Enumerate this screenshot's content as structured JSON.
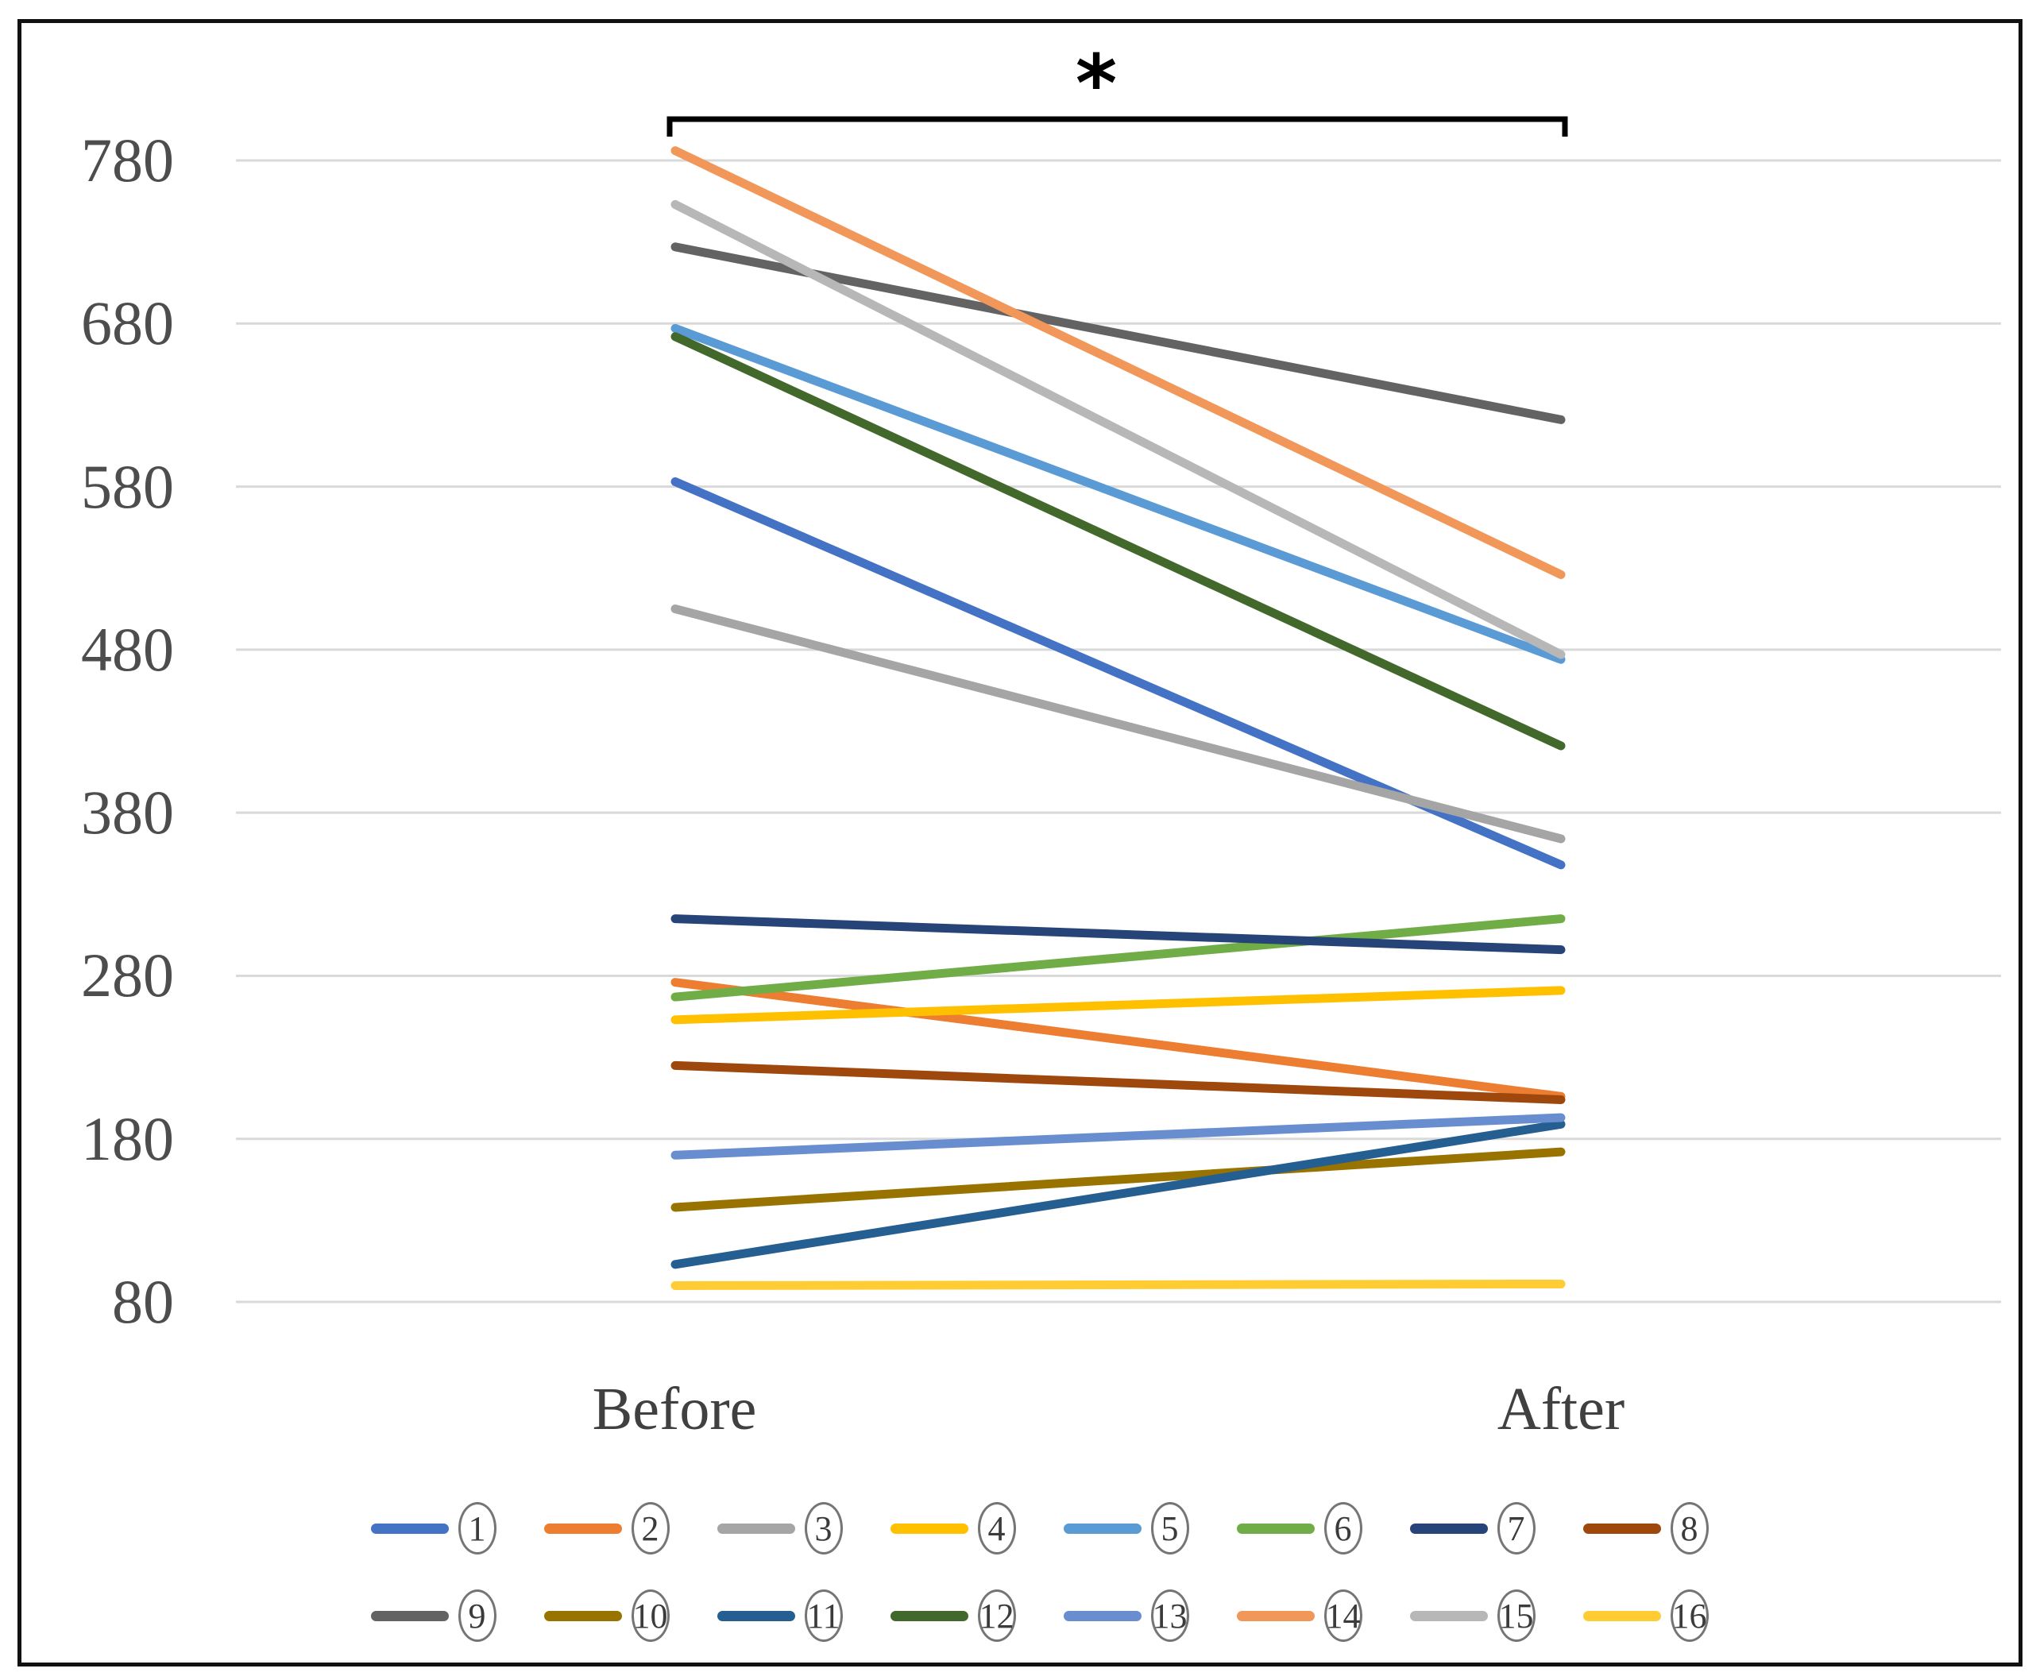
{
  "frame": {
    "border_color": "#111111",
    "background_color": "#ffffff",
    "gridline_color": "#d9d9d9",
    "bracket_color": "#000000",
    "tick_label_color": "#4d4d4d"
  },
  "annotation": {
    "significance_label": "*"
  },
  "chart_data": {
    "type": "line",
    "subtype": "slope-before-after",
    "title": "",
    "xlabel": "",
    "ylabel": "",
    "categories": [
      "Before",
      "After"
    ],
    "yticks": [
      780,
      680,
      580,
      480,
      380,
      280,
      180,
      80
    ],
    "ylim": [
      80,
      780
    ],
    "grid": true,
    "legend_position": "bottom-two-rows",
    "significance": {
      "label": "*",
      "between": [
        "Before",
        "After"
      ],
      "significant": true
    },
    "series": [
      {
        "name": "1",
        "color": "#4472C4",
        "values": [
          583,
          348
        ]
      },
      {
        "name": "2",
        "color": "#ED7D31",
        "values": [
          276,
          206
        ]
      },
      {
        "name": "3",
        "color": "#A5A5A5",
        "values": [
          505,
          364
        ]
      },
      {
        "name": "4",
        "color": "#FFC000",
        "values": [
          253,
          271
        ]
      },
      {
        "name": "5",
        "color": "#5B9BD5",
        "values": [
          677,
          474
        ]
      },
      {
        "name": "6",
        "color": "#70AD47",
        "values": [
          267,
          315
        ]
      },
      {
        "name": "7",
        "color": "#264478",
        "values": [
          315,
          296
        ]
      },
      {
        "name": "8",
        "color": "#9E480E",
        "values": [
          225,
          204
        ]
      },
      {
        "name": "9",
        "color": "#636363",
        "values": [
          727,
          621
        ]
      },
      {
        "name": "10",
        "color": "#997300",
        "values": [
          138,
          172
        ]
      },
      {
        "name": "11",
        "color": "#255E91",
        "values": [
          103,
          189
        ]
      },
      {
        "name": "12",
        "color": "#43682B",
        "values": [
          672,
          421
        ]
      },
      {
        "name": "13",
        "color": "#698ED0",
        "values": [
          170,
          193
        ]
      },
      {
        "name": "14",
        "color": "#F1975A",
        "values": [
          786,
          526
        ]
      },
      {
        "name": "15",
        "color": "#B7B7B7",
        "values": [
          753,
          477
        ]
      },
      {
        "name": "16",
        "color": "#FFCD33",
        "values": [
          90,
          91
        ]
      }
    ]
  }
}
